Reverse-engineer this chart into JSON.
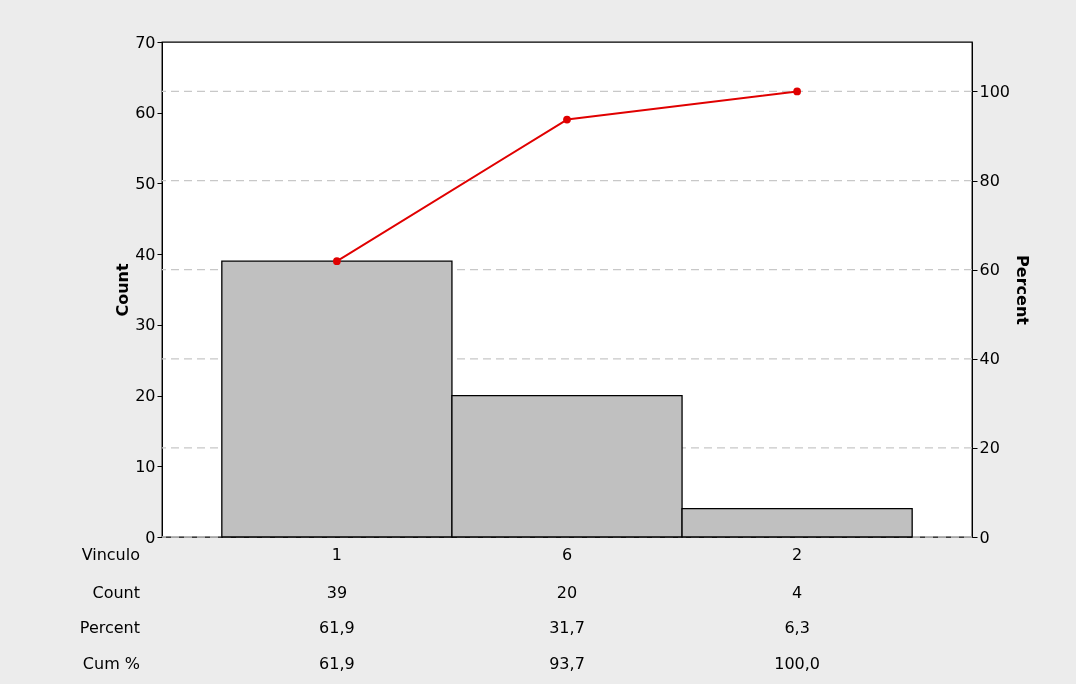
{
  "chart_data": {
    "type": "bar",
    "xlabel": "Vinculo",
    "ylabel": "Count",
    "y2label": "Percent",
    "categories": [
      "1",
      "6",
      "2"
    ],
    "series": [
      {
        "color": "#c0c0c0",
        "values": [
          39,
          20,
          4
        ],
        "value_labels": [
          "39",
          "20",
          "4"
        ]
      },
      {
        "type": "line",
        "axis": "y2",
        "color": "#e00000",
        "marker": "circle",
        "values": [
          61.9,
          93.7,
          100
        ],
        "value_labels": [
          "61,9",
          "93,7",
          "100,0"
        ]
      }
    ],
    "annotations": [
      "Count",
      "Percent",
      "61,9",
      "31,7",
      "6,3",
      "Cum %"
    ],
    "ylim": [
      0,
      70
    ],
    "yticks": [
      0,
      10,
      20,
      30,
      40,
      50,
      60,
      70
    ],
    "y2lim": [
      0,
      111.1
    ],
    "y2ticks": [
      0,
      20,
      40,
      60,
      80,
      100
    ],
    "grid": "y2"
  }
}
